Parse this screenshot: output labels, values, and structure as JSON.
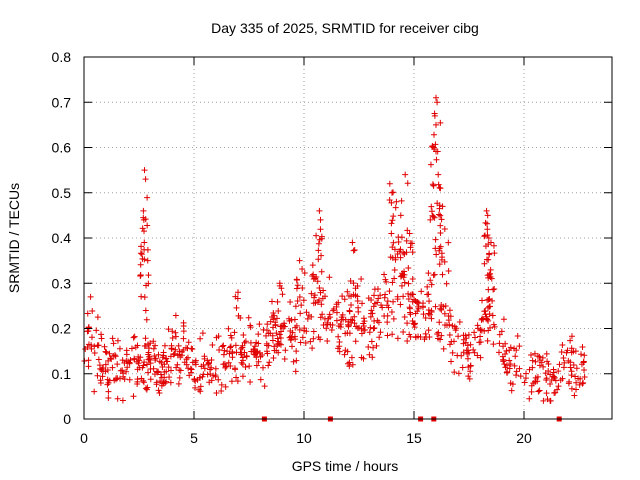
{
  "chart_data": {
    "type": "scatter",
    "title": "Day 335 of 2025, SRMTID for receiver cibg",
    "xlabel": "GPS time / hours",
    "ylabel": "SRMTID / TECUs",
    "xlim": [
      0,
      24
    ],
    "ylim": [
      0,
      0.8
    ],
    "x_ticks": [
      0,
      5,
      10,
      15,
      20
    ],
    "x_tick_labels": [
      "0",
      "5",
      "10",
      "15",
      "20"
    ],
    "y_ticks": [
      0,
      0.1,
      0.2,
      0.3,
      0.4,
      0.5,
      0.6,
      0.7,
      0.8
    ],
    "y_tick_labels": [
      "0",
      "0.1",
      "0.2",
      "0.3",
      "0.4",
      "0.5",
      "0.6",
      "0.7",
      "0.8"
    ],
    "grid": true,
    "marker": "plus",
    "color": "#e00000",
    "series": [
      {
        "name": "SRMTID",
        "baseline_profile": [
          [
            0.0,
            0.14
          ],
          [
            0.5,
            0.15
          ],
          [
            1.0,
            0.11
          ],
          [
            1.5,
            0.12
          ],
          [
            2.0,
            0.12
          ],
          [
            2.5,
            0.12
          ],
          [
            3.0,
            0.13
          ],
          [
            3.5,
            0.12
          ],
          [
            4.0,
            0.14
          ],
          [
            4.5,
            0.14
          ],
          [
            5.0,
            0.12
          ],
          [
            5.5,
            0.11
          ],
          [
            6.0,
            0.12
          ],
          [
            6.5,
            0.13
          ],
          [
            7.0,
            0.14
          ],
          [
            7.5,
            0.15
          ],
          [
            8.0,
            0.15
          ],
          [
            8.5,
            0.17
          ],
          [
            9.0,
            0.2
          ],
          [
            9.5,
            0.19
          ],
          [
            10.0,
            0.22
          ],
          [
            10.5,
            0.24
          ],
          [
            11.0,
            0.25
          ],
          [
            11.5,
            0.21
          ],
          [
            12.0,
            0.2
          ],
          [
            12.5,
            0.22
          ],
          [
            13.0,
            0.2
          ],
          [
            13.5,
            0.24
          ],
          [
            14.0,
            0.28
          ],
          [
            14.5,
            0.3
          ],
          [
            15.0,
            0.22
          ],
          [
            15.5,
            0.24
          ],
          [
            16.0,
            0.25
          ],
          [
            16.5,
            0.2
          ],
          [
            17.0,
            0.16
          ],
          [
            17.5,
            0.15
          ],
          [
            18.0,
            0.2
          ],
          [
            18.5,
            0.25
          ],
          [
            19.0,
            0.15
          ],
          [
            19.5,
            0.12
          ],
          [
            20.0,
            0.11
          ],
          [
            20.5,
            0.1
          ],
          [
            21.0,
            0.09
          ],
          [
            21.5,
            0.08
          ],
          [
            22.0,
            0.12
          ],
          [
            22.5,
            0.1
          ],
          [
            22.8,
            0.08
          ]
        ],
        "peaks": [
          {
            "x": 0.3,
            "y": 0.27
          },
          {
            "x": 2.75,
            "y": 0.55
          },
          {
            "x": 2.8,
            "y": 0.53
          },
          {
            "x": 2.7,
            "y": 0.46
          },
          {
            "x": 2.72,
            "y": 0.44
          },
          {
            "x": 2.74,
            "y": 0.39
          },
          {
            "x": 7.0,
            "y": 0.28
          },
          {
            "x": 8.9,
            "y": 0.3
          },
          {
            "x": 9.8,
            "y": 0.35
          },
          {
            "x": 10.4,
            "y": 0.34
          },
          {
            "x": 10.7,
            "y": 0.46
          },
          {
            "x": 10.75,
            "y": 0.44
          },
          {
            "x": 12.2,
            "y": 0.39
          },
          {
            "x": 13.9,
            "y": 0.52
          },
          {
            "x": 14.0,
            "y": 0.5
          },
          {
            "x": 14.2,
            "y": 0.48
          },
          {
            "x": 14.6,
            "y": 0.54
          },
          {
            "x": 14.4,
            "y": 0.45
          },
          {
            "x": 14.8,
            "y": 0.41
          },
          {
            "x": 16.0,
            "y": 0.71
          },
          {
            "x": 16.05,
            "y": 0.7
          },
          {
            "x": 15.95,
            "y": 0.67
          },
          {
            "x": 16.0,
            "y": 0.65
          },
          {
            "x": 15.9,
            "y": 0.6
          },
          {
            "x": 16.1,
            "y": 0.54
          },
          {
            "x": 16.2,
            "y": 0.51
          },
          {
            "x": 16.3,
            "y": 0.47
          },
          {
            "x": 16.4,
            "y": 0.42
          },
          {
            "x": 18.3,
            "y": 0.46
          },
          {
            "x": 18.35,
            "y": 0.45
          },
          {
            "x": 18.4,
            "y": 0.4
          },
          {
            "x": 18.5,
            "y": 0.39
          }
        ],
        "spread": 0.05,
        "count": 900
      },
      {
        "name": "zero-level markers",
        "x": [
          8.2,
          11.2,
          15.3,
          15.9,
          21.6
        ],
        "y": [
          0,
          0,
          0,
          0,
          0
        ]
      }
    ]
  }
}
